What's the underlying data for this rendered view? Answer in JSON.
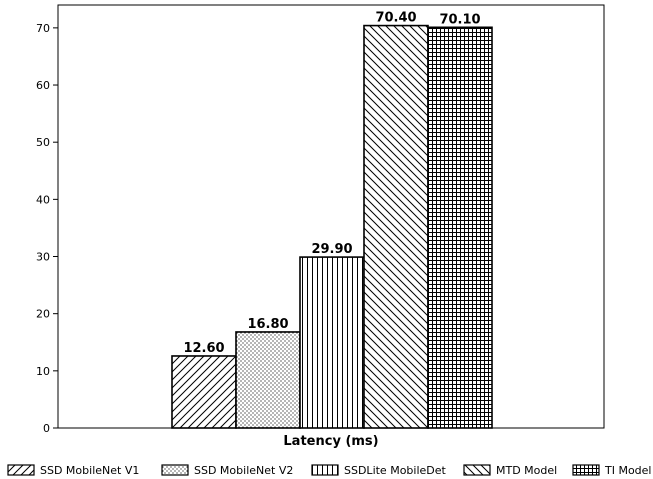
{
  "chart_data": {
    "type": "bar",
    "xlabel": "Latency (ms)",
    "ylabel": "",
    "ylim": [
      0,
      74
    ],
    "yticks": [
      0,
      10,
      20,
      30,
      40,
      50,
      60,
      70
    ],
    "grid": false,
    "legend_position": "bottom",
    "series": [
      {
        "name": "SSD MobileNet V1",
        "value": 12.6,
        "label": "12.60",
        "pattern": "diag-forward"
      },
      {
        "name": "SSD MobileNet V2",
        "value": 16.8,
        "label": "16.80",
        "pattern": "dots"
      },
      {
        "name": "SSDLite MobileDet",
        "value": 29.9,
        "label": "29.90",
        "pattern": "vertical"
      },
      {
        "name": "MTD Model",
        "value": 70.4,
        "label": "70.40",
        "pattern": "diag-back"
      },
      {
        "name": "TI Model",
        "value": 70.1,
        "label": "70.10",
        "pattern": "grid"
      }
    ]
  }
}
